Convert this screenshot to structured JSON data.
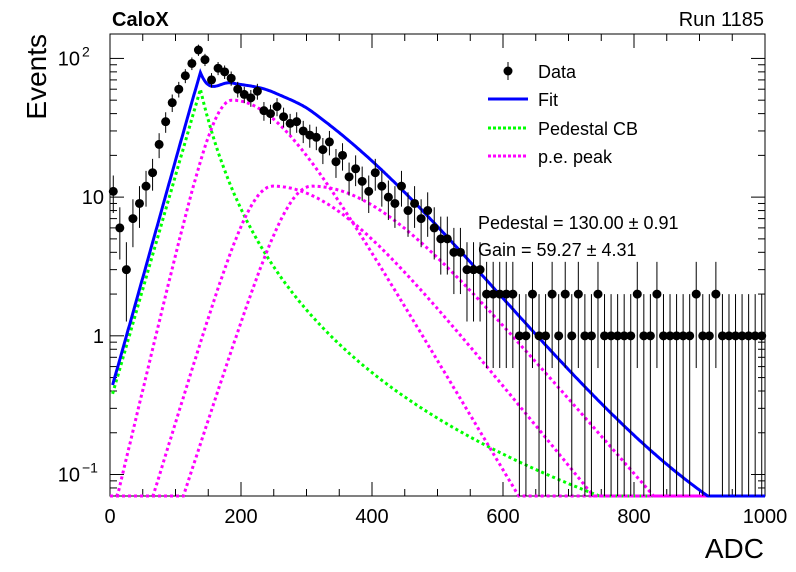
{
  "header": {
    "left_label": "CaloX",
    "right_label": "Run 1185"
  },
  "stats": {
    "pedestal": "Pedestal = 130.00 ± 0.91",
    "gain": "Gain = 59.27 ± 4.31"
  },
  "chart_data": {
    "type": "scatter",
    "title": "",
    "xlabel": "ADC",
    "ylabel": "Events",
    "xlim": [
      0,
      1000
    ],
    "ylim": [
      0.07,
      150
    ],
    "y_scale": "log",
    "grid": false,
    "legend_position": "top-right",
    "x_ticks": [
      {
        "value": 0,
        "label": "0"
      },
      {
        "value": 200,
        "label": "200"
      },
      {
        "value": 400,
        "label": "400"
      },
      {
        "value": 600,
        "label": "600"
      },
      {
        "value": 800,
        "label": "800"
      },
      {
        "value": 1000,
        "label": "1000"
      }
    ],
    "y_ticks": [
      {
        "value": 0.1,
        "base": "10",
        "exp": "−1"
      },
      {
        "value": 1,
        "base": "1",
        "exp": ""
      },
      {
        "value": 10,
        "base": "10",
        "exp": ""
      },
      {
        "value": 100,
        "base": "10",
        "exp": "2"
      }
    ],
    "series": [
      {
        "name": "Data",
        "kind": "points",
        "color": "#000000",
        "x": [
          5,
          15,
          25,
          35,
          45,
          55,
          65,
          75,
          85,
          95,
          105,
          115,
          125,
          135,
          145,
          155,
          165,
          175,
          185,
          195,
          205,
          215,
          225,
          235,
          245,
          255,
          265,
          275,
          285,
          295,
          305,
          315,
          325,
          335,
          345,
          355,
          365,
          375,
          385,
          395,
          405,
          415,
          425,
          435,
          445,
          455,
          465,
          475,
          485,
          495,
          505,
          515,
          525,
          535,
          545,
          555,
          565,
          575,
          585,
          595,
          605,
          615,
          625,
          635,
          645,
          655,
          665,
          675,
          685,
          695,
          705,
          715,
          725,
          735,
          745,
          755,
          765,
          775,
          785,
          795,
          805,
          815,
          825,
          835,
          845,
          855,
          865,
          875,
          885,
          895,
          905,
          915,
          925,
          935,
          945,
          955,
          965,
          975,
          985,
          995
        ],
        "y": [
          11,
          6,
          3,
          7,
          9,
          12,
          15,
          24,
          35,
          48,
          60,
          75,
          92,
          115,
          98,
          70,
          85,
          80,
          72,
          60,
          55,
          52,
          58,
          42,
          40,
          45,
          38,
          34,
          35,
          30,
          28,
          27,
          22,
          25,
          18,
          20,
          14,
          16,
          13,
          11,
          15,
          12,
          10,
          9,
          12,
          8,
          9,
          7,
          8,
          6,
          5,
          5,
          4,
          4,
          3,
          3,
          3,
          2,
          2,
          2,
          2,
          2,
          1,
          1,
          2,
          1,
          1,
          2,
          1,
          2,
          1,
          2,
          1,
          1,
          2,
          1,
          1,
          1,
          1,
          1,
          2,
          1,
          1,
          2,
          1,
          1,
          1,
          1,
          1,
          2,
          1,
          1,
          2,
          1,
          1,
          1,
          1,
          1,
          1,
          1
        ]
      },
      {
        "name": "Fit",
        "kind": "line",
        "color": "#0000ff"
      },
      {
        "name": "Pedestal CB",
        "kind": "dashed",
        "color": "#00ff00"
      },
      {
        "name": "p.e. peak",
        "kind": "dashed",
        "color": "#ff00ff"
      }
    ],
    "fit": {
      "pedestal": 130.0,
      "gain": 59.27
    }
  }
}
